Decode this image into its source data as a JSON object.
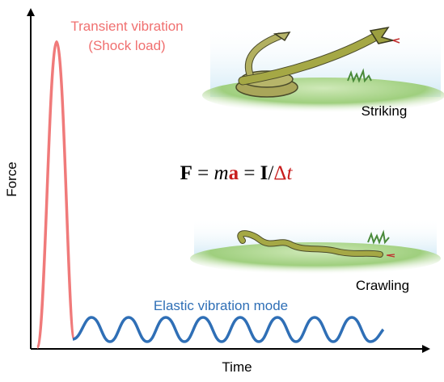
{
  "axes": {
    "y_label": "Force",
    "x_label": "Time"
  },
  "labels": {
    "transient_line1": "Transient vibration",
    "transient_line2": "(Shock load)",
    "elastic": "Elastic vibration mode",
    "striking": "Striking",
    "crawling": "Crawling"
  },
  "equation": {
    "parts": [
      "F",
      " = ",
      "m",
      "a",
      " = ",
      "I",
      "/",
      "Δ",
      "t"
    ]
  }
}
